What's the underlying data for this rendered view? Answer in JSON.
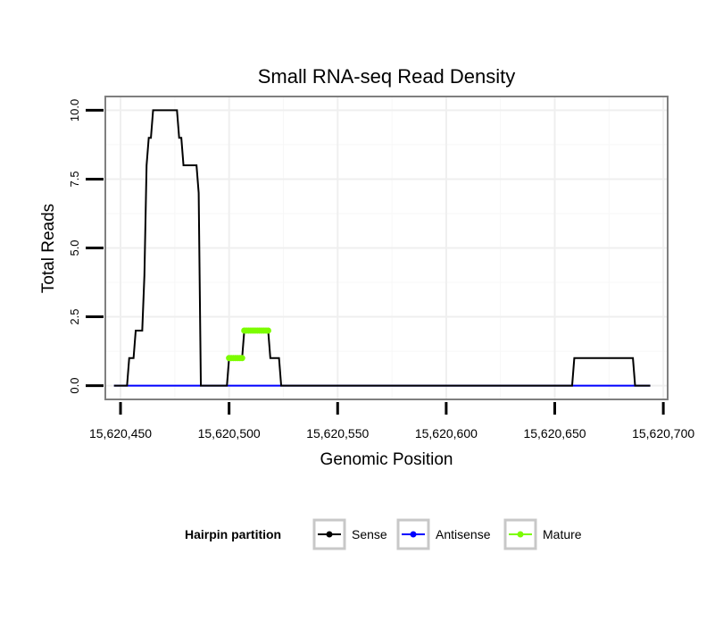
{
  "chart_data": {
    "type": "line",
    "title": "Small RNA-seq Read Density",
    "xlabel": "Genomic Position",
    "ylabel": "Total Reads",
    "xlim": [
      15620443,
      15620702
    ],
    "ylim": [
      -0.5,
      10.5
    ],
    "x_ticks": [
      15620450,
      15620500,
      15620550,
      15620600,
      15620650,
      15620700
    ],
    "x_tick_labels": [
      "15,620,450",
      "15,620,500",
      "15,620,550",
      "15,620,600",
      "15,620,650",
      "15,620,700"
    ],
    "y_ticks": [
      0,
      2.5,
      5,
      7.5,
      10
    ],
    "y_tick_labels": [
      "0.0",
      "2.5",
      "5.0",
      "7.5",
      "10.0"
    ],
    "legend_title": "Hairpin partition",
    "legend_position": "bottom",
    "grid": true,
    "series": [
      {
        "name": "Sense",
        "color": "#000000",
        "points": [
          [
            15620447,
            0
          ],
          [
            15620453,
            0
          ],
          [
            15620454,
            1
          ],
          [
            15620456,
            1
          ],
          [
            15620457,
            2
          ],
          [
            15620460,
            2
          ],
          [
            15620461,
            4
          ],
          [
            15620462,
            8
          ],
          [
            15620463,
            9
          ],
          [
            15620464,
            9
          ],
          [
            15620465,
            10
          ],
          [
            15620476,
            10
          ],
          [
            15620477,
            9
          ],
          [
            15620478,
            9
          ],
          [
            15620479,
            8
          ],
          [
            15620485,
            8
          ],
          [
            15620486,
            7
          ],
          [
            15620487,
            0
          ],
          [
            15620499,
            0
          ],
          [
            15620500,
            1
          ],
          [
            15620506,
            1
          ],
          [
            15620507,
            2
          ],
          [
            15620518,
            2
          ],
          [
            15620519,
            1
          ],
          [
            15620523,
            1
          ],
          [
            15620524,
            0
          ],
          [
            15620658,
            0
          ],
          [
            15620659,
            1
          ],
          [
            15620686,
            1
          ],
          [
            15620687,
            0
          ],
          [
            15620694,
            0
          ]
        ]
      },
      {
        "name": "Antisense",
        "color": "#0000ff",
        "points": [
          [
            15620447,
            0
          ],
          [
            15620694,
            0
          ]
        ]
      },
      {
        "name": "Mature",
        "color": "#7cfc00",
        "segments": [
          {
            "x": [
              15620500,
              15620506
            ],
            "y": 1
          },
          {
            "x": [
              15620507,
              15620518
            ],
            "y": 2
          }
        ]
      }
    ]
  }
}
